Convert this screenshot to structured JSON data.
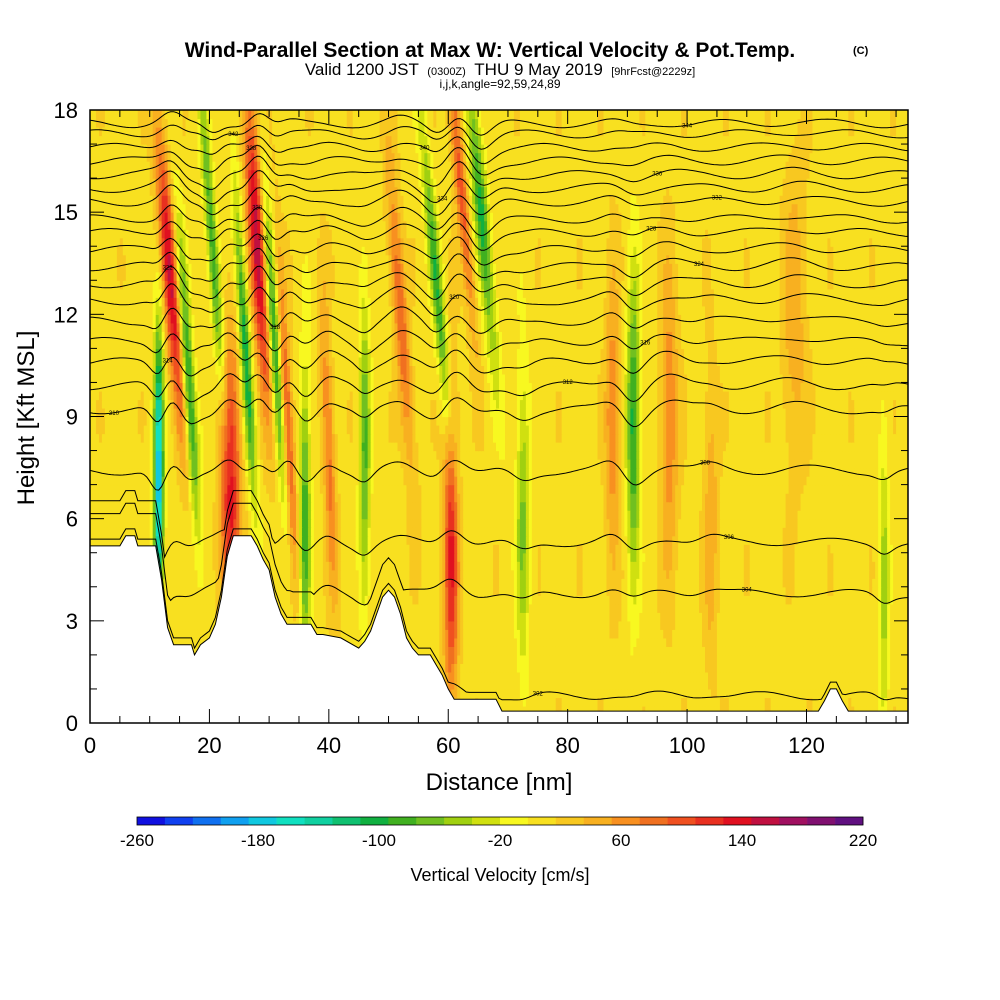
{
  "chart_data": {
    "type": "heatmap",
    "title": "Wind-Parallel Section at Max W: Vertical Velocity & Pot.Temp.",
    "title_mark": "(C)",
    "subtitle": {
      "valid": "Valid 1200 JST",
      "utc": "(0300Z)",
      "date": "THU 9 May 2019",
      "forecast": "[9hrFcst@2229z]"
    },
    "indices": "i,j,k,angle=92,59,24,89",
    "xlabel": "Distance [nm]",
    "ylabel": "Height [Kft MSL]",
    "xlim": [
      0,
      137
    ],
    "ylim": [
      0,
      18
    ],
    "xticks": [
      0,
      20,
      40,
      60,
      80,
      100,
      120
    ],
    "yticks": [
      0,
      3,
      6,
      9,
      12,
      15,
      18
    ],
    "colorbar": {
      "label": "Vertical Velocity [cm/s]",
      "ticks": [
        -260,
        -180,
        -100,
        -20,
        60,
        140,
        220
      ],
      "colors": [
        "#1010e0",
        "#1040f0",
        "#1070f0",
        "#10a0f0",
        "#10c8e0",
        "#10e0c0",
        "#10d0a0",
        "#10c070",
        "#10b040",
        "#40b020",
        "#70c020",
        "#a0d010",
        "#d0e010",
        "#f8f820",
        "#f8e020",
        "#f8c820",
        "#f8b020",
        "#f89020",
        "#f07020",
        "#f05020",
        "#e83020",
        "#e01020",
        "#c01040",
        "#a01060",
        "#801070",
        "#601080"
      ]
    },
    "background_value": 10,
    "velocity_features": [
      {
        "x": 13.5,
        "y": 13,
        "value": 140,
        "tilt": -0.45,
        "width": 1.3
      },
      {
        "x": 11.5,
        "y": 7,
        "value": -200,
        "tilt": 0,
        "width": 0.8
      },
      {
        "x": 16.5,
        "y": 10,
        "value": -120,
        "tilt": -0.35,
        "width": 1.0
      },
      {
        "x": 20.5,
        "y": 14,
        "value": -100,
        "tilt": -0.4,
        "width": 0.9
      },
      {
        "x": 23.5,
        "y": 6.5,
        "value": 130,
        "tilt": 0,
        "width": 1.6
      },
      {
        "x": 28,
        "y": 14,
        "value": 150,
        "tilt": -0.35,
        "width": 1.3
      },
      {
        "x": 26,
        "y": 11,
        "value": -120,
        "tilt": -0.35,
        "width": 0.9
      },
      {
        "x": 31,
        "y": 11,
        "value": -120,
        "tilt": -0.35,
        "width": 0.9
      },
      {
        "x": 33,
        "y": 9,
        "value": 90,
        "tilt": -0.3,
        "width": 1.0
      },
      {
        "x": 36,
        "y": 6,
        "value": -100,
        "tilt": 0,
        "width": 0.9
      },
      {
        "x": 40,
        "y": 8,
        "value": 70,
        "tilt": -0.2,
        "width": 1.0
      },
      {
        "x": 46,
        "y": 8,
        "value": -90,
        "tilt": 0,
        "width": 0.9
      },
      {
        "x": 52,
        "y": 12,
        "value": 80,
        "tilt": -0.4,
        "width": 1.2
      },
      {
        "x": 58,
        "y": 13,
        "value": -100,
        "tilt": -0.5,
        "width": 1.0
      },
      {
        "x": 60.5,
        "y": 5,
        "value": 120,
        "tilt": 0,
        "width": 1.2
      },
      {
        "x": 62,
        "y": 16,
        "value": 90,
        "tilt": -0.5,
        "width": 1.0
      },
      {
        "x": 65.5,
        "y": 15,
        "value": -110,
        "tilt": -0.5,
        "width": 1.2
      },
      {
        "x": 72.5,
        "y": 6,
        "value": -70,
        "tilt": 0,
        "width": 1.1
      },
      {
        "x": 87.5,
        "y": 9,
        "value": 60,
        "tilt": 0,
        "width": 1.2
      },
      {
        "x": 91,
        "y": 8.8,
        "value": -110,
        "tilt": 0,
        "width": 1.1
      },
      {
        "x": 97,
        "y": 9,
        "value": 60,
        "tilt": 0,
        "width": 1.5
      },
      {
        "x": 104,
        "y": 6,
        "value": 40,
        "tilt": 0,
        "width": 1.2
      },
      {
        "x": 118,
        "y": 12,
        "value": 40,
        "tilt": 0,
        "width": 2.0
      },
      {
        "x": 133,
        "y": 4,
        "value": -60,
        "tilt": 0,
        "width": 0.8
      }
    ],
    "terrain": [
      [
        0,
        5.2
      ],
      [
        5,
        5.2
      ],
      [
        6,
        5.5
      ],
      [
        7.5,
        5.5
      ],
      [
        8,
        5.2
      ],
      [
        11,
        5.2
      ],
      [
        12,
        4.2
      ],
      [
        13,
        2.8
      ],
      [
        14,
        2.3
      ],
      [
        17,
        2.3
      ],
      [
        17.5,
        2
      ],
      [
        18.5,
        2.3
      ],
      [
        20,
        2.5
      ],
      [
        21,
        2.9
      ],
      [
        22,
        3.7
      ],
      [
        23,
        4.9
      ],
      [
        24,
        5.5
      ],
      [
        27,
        5.5
      ],
      [
        28,
        5.2
      ],
      [
        29,
        4.8
      ],
      [
        30,
        4.5
      ],
      [
        31,
        3.7
      ],
      [
        32,
        3.2
      ],
      [
        33,
        2.9
      ],
      [
        37,
        2.9
      ],
      [
        38,
        2.6
      ],
      [
        39,
        2.6
      ],
      [
        42,
        2.5
      ],
      [
        45,
        2.2
      ],
      [
        46,
        2.4
      ],
      [
        47,
        2.7
      ],
      [
        48,
        3.2
      ],
      [
        49,
        3.7
      ],
      [
        50,
        3.9
      ],
      [
        51,
        3.7
      ],
      [
        52,
        3.2
      ],
      [
        53,
        2.5
      ],
      [
        54,
        2.2
      ],
      [
        55,
        2.0
      ],
      [
        57,
        2.0
      ],
      [
        58,
        1.7
      ],
      [
        59,
        1.4
      ],
      [
        60,
        1.0
      ],
      [
        61,
        0.7
      ],
      [
        68,
        0.7
      ],
      [
        69,
        0.35
      ],
      [
        122,
        0.35
      ],
      [
        123,
        0.65
      ],
      [
        124,
        1.0
      ],
      [
        125,
        1.0
      ],
      [
        126,
        0.65
      ],
      [
        127,
        0.35
      ],
      [
        137,
        0.35
      ]
    ],
    "isentropes": [
      {
        "level": 0.8,
        "label": "302",
        "lx": 75
      },
      {
        "level": 3.8,
        "label": "304",
        "lx": 110
      },
      {
        "level": 5.3,
        "label": "306",
        "lx": 107
      },
      {
        "level": 7.4,
        "label": "308",
        "lx": 103
      },
      {
        "level": 9.2,
        "label": "310",
        "lx": 4
      },
      {
        "level": 9.9,
        "label": "312",
        "lx": 80
      },
      {
        "level": 10.6,
        "label": "314",
        "lx": 13
      },
      {
        "level": 11.2,
        "label": "316",
        "lx": 93
      },
      {
        "level": 11.8,
        "label": "318",
        "lx": 31
      },
      {
        "level": 12.4,
        "label": "320",
        "lx": 61
      },
      {
        "level": 12.9,
        "label": "322",
        "lx": 13
      },
      {
        "level": 13.4,
        "label": "324",
        "lx": 102
      },
      {
        "level": 13.9,
        "label": "326",
        "lx": 29
      },
      {
        "level": 14.4,
        "label": "328",
        "lx": 94
      },
      {
        "level": 14.8,
        "label": "330",
        "lx": 28
      },
      {
        "level": 15.3,
        "label": "332",
        "lx": 105
      },
      {
        "level": 15.7,
        "label": "334",
        "lx": 59
      },
      {
        "level": 16.1,
        "label": "336",
        "lx": 95
      },
      {
        "level": 16.5,
        "label": "338",
        "lx": 27
      },
      {
        "level": 16.9,
        "label": "340",
        "lx": 56
      },
      {
        "level": 17.3,
        "label": "342",
        "lx": 24
      },
      {
        "level": 17.6,
        "label": "344",
        "lx": 100
      }
    ]
  }
}
